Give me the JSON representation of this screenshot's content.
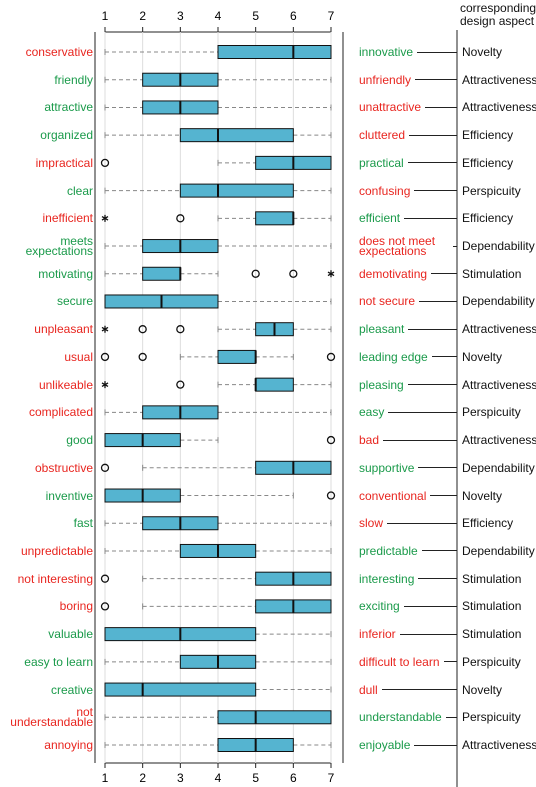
{
  "chart_data": {
    "type": "box",
    "header": "corresponding design aspect",
    "xlim": [
      1,
      7
    ],
    "xticks": [
      1,
      2,
      3,
      4,
      5,
      6,
      7
    ],
    "box_color": "#55b4d0",
    "rows": [
      {
        "left": "conservative",
        "left_color": "#e8251f",
        "right": "innovative",
        "right_color": "#1a9a4a",
        "aspect": "Novelty",
        "whisker_low": 1,
        "q1": 4,
        "median": 6,
        "q3": 7,
        "whisker_high": 7,
        "outliers": []
      },
      {
        "left": "friendly",
        "left_color": "#1a9a4a",
        "right": "unfriendly",
        "right_color": "#e8251f",
        "aspect": "Attractiveness",
        "whisker_low": 1,
        "q1": 2,
        "median": 3,
        "q3": 4,
        "whisker_high": 7,
        "outliers": []
      },
      {
        "left": "attractive",
        "left_color": "#1a9a4a",
        "right": "unattractive",
        "right_color": "#e8251f",
        "aspect": "Attractiveness",
        "whisker_low": 1,
        "q1": 2,
        "median": 3,
        "q3": 4,
        "whisker_high": 7,
        "outliers": []
      },
      {
        "left": "organized",
        "left_color": "#1a9a4a",
        "right": "cluttered",
        "right_color": "#e8251f",
        "aspect": "Efficiency",
        "whisker_low": 1,
        "q1": 3,
        "median": 4,
        "q3": 6,
        "whisker_high": 7,
        "outliers": []
      },
      {
        "left": "impractical",
        "left_color": "#e8251f",
        "right": "practical",
        "right_color": "#1a9a4a",
        "aspect": "Efficiency",
        "whisker_low": 4,
        "q1": 5,
        "median": 6,
        "q3": 7,
        "whisker_high": 7,
        "outliers": [
          {
            "value": 1,
            "marker": "circle"
          }
        ]
      },
      {
        "left": "clear",
        "left_color": "#1a9a4a",
        "right": "confusing",
        "right_color": "#e8251f",
        "aspect": "Perspicuity",
        "whisker_low": 1,
        "q1": 3,
        "median": 4,
        "q3": 6,
        "whisker_high": 7,
        "outliers": []
      },
      {
        "left": "inefficient",
        "left_color": "#e8251f",
        "right": "efficient",
        "right_color": "#1a9a4a",
        "aspect": "Efficiency",
        "whisker_low": 4,
        "q1": 5,
        "median": 6,
        "q3": 6,
        "whisker_high": 7,
        "outliers": [
          {
            "value": 1,
            "marker": "star"
          },
          {
            "value": 3,
            "marker": "circle"
          }
        ]
      },
      {
        "left": "meets expectations",
        "left_color": "#1a9a4a",
        "right": "does not meet expectations",
        "right_color": "#e8251f",
        "aspect": "Dependability",
        "whisker_low": 1,
        "q1": 2,
        "median": 3,
        "q3": 4,
        "whisker_high": 7,
        "outliers": []
      },
      {
        "left": "motivating",
        "left_color": "#1a9a4a",
        "right": "demotivating",
        "right_color": "#e8251f",
        "aspect": "Stimulation",
        "whisker_low": 1,
        "q1": 2,
        "median": 3,
        "q3": 3,
        "whisker_high": 4,
        "outliers": [
          {
            "value": 5,
            "marker": "circle"
          },
          {
            "value": 6,
            "marker": "circle"
          },
          {
            "value": 7,
            "marker": "star"
          }
        ]
      },
      {
        "left": "secure",
        "left_color": "#1a9a4a",
        "right": "not secure",
        "right_color": "#e8251f",
        "aspect": "Dependability",
        "whisker_low": 1,
        "q1": 1,
        "median": 2.5,
        "q3": 4,
        "whisker_high": 7,
        "outliers": []
      },
      {
        "left": "unpleasant",
        "left_color": "#e8251f",
        "right": "pleasant",
        "right_color": "#1a9a4a",
        "aspect": "Attractiveness",
        "whisker_low": 4,
        "q1": 5,
        "median": 5.5,
        "q3": 6,
        "whisker_high": 7,
        "outliers": [
          {
            "value": 1,
            "marker": "star"
          },
          {
            "value": 2,
            "marker": "circle"
          },
          {
            "value": 3,
            "marker": "circle"
          }
        ]
      },
      {
        "left": "usual",
        "left_color": "#e8251f",
        "right": "leading edge",
        "right_color": "#1a9a4a",
        "aspect": "Novelty",
        "whisker_low": 3,
        "q1": 4,
        "median": 5,
        "q3": 5,
        "whisker_high": 6,
        "outliers": [
          {
            "value": 1,
            "marker": "circle"
          },
          {
            "value": 2,
            "marker": "circle"
          },
          {
            "value": 7,
            "marker": "circle"
          }
        ]
      },
      {
        "left": "unlikeable",
        "left_color": "#e8251f",
        "right": "pleasing",
        "right_color": "#1a9a4a",
        "aspect": "Attractiveness",
        "whisker_low": 4,
        "q1": 5,
        "median": 5,
        "q3": 6,
        "whisker_high": 7,
        "outliers": [
          {
            "value": 1,
            "marker": "star"
          },
          {
            "value": 3,
            "marker": "circle"
          }
        ]
      },
      {
        "left": "complicated",
        "left_color": "#e8251f",
        "right": "easy",
        "right_color": "#1a9a4a",
        "aspect": "Perspicuity",
        "whisker_low": 1,
        "q1": 2,
        "median": 3,
        "q3": 4,
        "whisker_high": 7,
        "outliers": []
      },
      {
        "left": "good",
        "left_color": "#1a9a4a",
        "right": "bad",
        "right_color": "#e8251f",
        "aspect": "Attractiveness",
        "whisker_low": 1,
        "q1": 1,
        "median": 2,
        "q3": 3,
        "whisker_high": 4,
        "outliers": [
          {
            "value": 7,
            "marker": "circle"
          }
        ]
      },
      {
        "left": "obstructive",
        "left_color": "#e8251f",
        "right": "supportive",
        "right_color": "#1a9a4a",
        "aspect": "Dependability",
        "whisker_low": 2,
        "q1": 5,
        "median": 6,
        "q3": 7,
        "whisker_high": 7,
        "outliers": [
          {
            "value": 1,
            "marker": "circle"
          }
        ]
      },
      {
        "left": "inventive",
        "left_color": "#1a9a4a",
        "right": "conventional",
        "right_color": "#e8251f",
        "aspect": "Novelty",
        "whisker_low": 1,
        "q1": 1,
        "median": 2,
        "q3": 3,
        "whisker_high": 6,
        "outliers": [
          {
            "value": 7,
            "marker": "circle"
          }
        ]
      },
      {
        "left": "fast",
        "left_color": "#1a9a4a",
        "right": "slow",
        "right_color": "#e8251f",
        "aspect": "Efficiency",
        "whisker_low": 1,
        "q1": 2,
        "median": 3,
        "q3": 4,
        "whisker_high": 7,
        "outliers": []
      },
      {
        "left": "unpredictable",
        "left_color": "#e8251f",
        "right": "predictable",
        "right_color": "#1a9a4a",
        "aspect": "Dependability",
        "whisker_low": 1,
        "q1": 3,
        "median": 4,
        "q3": 5,
        "whisker_high": 7,
        "outliers": []
      },
      {
        "left": "not interesting",
        "left_color": "#e8251f",
        "right": "interesting",
        "right_color": "#1a9a4a",
        "aspect": "Stimulation",
        "whisker_low": 2,
        "q1": 5,
        "median": 6,
        "q3": 7,
        "whisker_high": 7,
        "outliers": [
          {
            "value": 1,
            "marker": "circle"
          }
        ]
      },
      {
        "left": "boring",
        "left_color": "#e8251f",
        "right": "exciting",
        "right_color": "#1a9a4a",
        "aspect": "Stimulation",
        "whisker_low": 2,
        "q1": 5,
        "median": 6,
        "q3": 7,
        "whisker_high": 7,
        "outliers": [
          {
            "value": 1,
            "marker": "circle"
          }
        ]
      },
      {
        "left": "valuable",
        "left_color": "#1a9a4a",
        "right": "inferior",
        "right_color": "#e8251f",
        "aspect": "Stimulation",
        "whisker_low": 1,
        "q1": 1,
        "median": 3,
        "q3": 5,
        "whisker_high": 7,
        "outliers": []
      },
      {
        "left": "easy to learn",
        "left_color": "#1a9a4a",
        "right": "difficult to learn",
        "right_color": "#e8251f",
        "aspect": "Perspicuity",
        "whisker_low": 1,
        "q1": 3,
        "median": 4,
        "q3": 5,
        "whisker_high": 7,
        "outliers": []
      },
      {
        "left": "creative",
        "left_color": "#1a9a4a",
        "right": "dull",
        "right_color": "#e8251f",
        "aspect": "Novelty",
        "whisker_low": 1,
        "q1": 1,
        "median": 2,
        "q3": 5,
        "whisker_high": 7,
        "outliers": []
      },
      {
        "left": "not understandable",
        "left_color": "#e8251f",
        "right": "understandable",
        "right_color": "#1a9a4a",
        "aspect": "Perspicuity",
        "whisker_low": 1,
        "q1": 4,
        "median": 5,
        "q3": 7,
        "whisker_high": 7,
        "outliers": []
      },
      {
        "left": "annoying",
        "left_color": "#e8251f",
        "right": "enjoyable",
        "right_color": "#1a9a4a",
        "aspect": "Attractiveness",
        "whisker_low": 1,
        "q1": 4,
        "median": 5,
        "q3": 6,
        "whisker_high": 7,
        "outliers": []
      }
    ]
  }
}
